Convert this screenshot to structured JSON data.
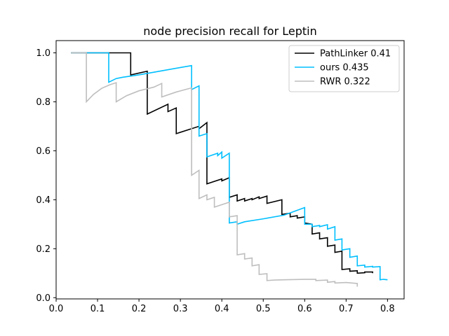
{
  "chart_data": {
    "type": "line",
    "title": "node precision recall for Leptin",
    "xlabel": "",
    "ylabel": "",
    "xlim": [
      0.0,
      0.84
    ],
    "ylim": [
      -0.005,
      1.05
    ],
    "xticks": [
      "0.0",
      "0.1",
      "0.2",
      "0.3",
      "0.4",
      "0.5",
      "0.6",
      "0.7",
      "0.8"
    ],
    "xtick_values": [
      0.0,
      0.1,
      0.2,
      0.3,
      0.4,
      0.5,
      0.6,
      0.7,
      0.8
    ],
    "yticks": [
      "0.0",
      "0.2",
      "0.4",
      "0.6",
      "0.8",
      "1.0"
    ],
    "ytick_values": [
      0.0,
      0.2,
      0.4,
      0.6,
      0.8,
      1.0
    ],
    "legend_position": "top-right",
    "grid": false,
    "series": [
      {
        "name": "PathLinker 0.41",
        "color": "#000000",
        "points": [
          [
            0.036,
            1.0
          ],
          [
            0.18,
            1.0
          ],
          [
            0.18,
            0.91
          ],
          [
            0.22,
            0.925
          ],
          [
            0.22,
            0.75
          ],
          [
            0.27,
            0.79
          ],
          [
            0.27,
            0.76
          ],
          [
            0.29,
            0.775
          ],
          [
            0.29,
            0.67
          ],
          [
            0.345,
            0.7
          ],
          [
            0.345,
            0.69
          ],
          [
            0.364,
            0.715
          ],
          [
            0.364,
            0.465
          ],
          [
            0.4,
            0.485
          ],
          [
            0.4,
            0.477
          ],
          [
            0.418,
            0.49
          ],
          [
            0.418,
            0.41
          ],
          [
            0.437,
            0.42
          ],
          [
            0.437,
            0.395
          ],
          [
            0.455,
            0.405
          ],
          [
            0.455,
            0.395
          ],
          [
            0.473,
            0.405
          ],
          [
            0.473,
            0.4
          ],
          [
            0.49,
            0.412
          ],
          [
            0.49,
            0.405
          ],
          [
            0.509,
            0.415
          ],
          [
            0.509,
            0.385
          ],
          [
            0.545,
            0.4
          ],
          [
            0.545,
            0.34
          ],
          [
            0.565,
            0.345
          ],
          [
            0.565,
            0.33
          ],
          [
            0.582,
            0.335
          ],
          [
            0.582,
            0.325
          ],
          [
            0.6,
            0.33
          ],
          [
            0.6,
            0.305
          ],
          [
            0.618,
            0.3
          ],
          [
            0.618,
            0.26
          ],
          [
            0.636,
            0.265
          ],
          [
            0.636,
            0.24
          ],
          [
            0.655,
            0.245
          ],
          [
            0.655,
            0.21
          ],
          [
            0.673,
            0.215
          ],
          [
            0.673,
            0.185
          ],
          [
            0.69,
            0.19
          ],
          [
            0.69,
            0.115
          ],
          [
            0.709,
            0.118
          ],
          [
            0.709,
            0.108
          ],
          [
            0.727,
            0.11
          ],
          [
            0.727,
            0.1
          ],
          [
            0.745,
            0.102
          ],
          [
            0.745,
            0.105
          ],
          [
            0.764,
            0.105
          ],
          [
            0.764,
            0.1
          ]
        ]
      },
      {
        "name": "ours 0.435",
        "color": "#00bfff",
        "points": [
          [
            0.036,
            1.0
          ],
          [
            0.127,
            1.0
          ],
          [
            0.127,
            0.88
          ],
          [
            0.145,
            0.895
          ],
          [
            0.16,
            0.9
          ],
          [
            0.2,
            0.91
          ],
          [
            0.25,
            0.925
          ],
          [
            0.3,
            0.94
          ],
          [
            0.327,
            0.948
          ],
          [
            0.327,
            0.85
          ],
          [
            0.345,
            0.865
          ],
          [
            0.345,
            0.66
          ],
          [
            0.364,
            0.67
          ],
          [
            0.364,
            0.575
          ],
          [
            0.39,
            0.59
          ],
          [
            0.39,
            0.58
          ],
          [
            0.4,
            0.595
          ],
          [
            0.4,
            0.57
          ],
          [
            0.418,
            0.59
          ],
          [
            0.418,
            0.305
          ],
          [
            0.437,
            0.31
          ],
          [
            0.437,
            0.3
          ],
          [
            0.455,
            0.31
          ],
          [
            0.5,
            0.322
          ],
          [
            0.55,
            0.337
          ],
          [
            0.6,
            0.368
          ],
          [
            0.6,
            0.3
          ],
          [
            0.618,
            0.3
          ],
          [
            0.618,
            0.29
          ],
          [
            0.636,
            0.295
          ],
          [
            0.636,
            0.29
          ],
          [
            0.655,
            0.298
          ],
          [
            0.655,
            0.28
          ],
          [
            0.673,
            0.29
          ],
          [
            0.673,
            0.235
          ],
          [
            0.69,
            0.24
          ],
          [
            0.69,
            0.195
          ],
          [
            0.709,
            0.2
          ],
          [
            0.709,
            0.165
          ],
          [
            0.727,
            0.17
          ],
          [
            0.727,
            0.13
          ],
          [
            0.745,
            0.133
          ],
          [
            0.745,
            0.125
          ],
          [
            0.764,
            0.128
          ],
          [
            0.764,
            0.125
          ],
          [
            0.782,
            0.127
          ],
          [
            0.782,
            0.073
          ],
          [
            0.79,
            0.075
          ],
          [
            0.8,
            0.073
          ]
        ]
      },
      {
        "name": "RWR 0.322",
        "color": "#bebebe",
        "points": [
          [
            0.036,
            1.0
          ],
          [
            0.073,
            1.0
          ],
          [
            0.073,
            0.8
          ],
          [
            0.09,
            0.83
          ],
          [
            0.11,
            0.855
          ],
          [
            0.13,
            0.87
          ],
          [
            0.145,
            0.878
          ],
          [
            0.145,
            0.8
          ],
          [
            0.17,
            0.825
          ],
          [
            0.2,
            0.845
          ],
          [
            0.236,
            0.86
          ],
          [
            0.255,
            0.875
          ],
          [
            0.255,
            0.82
          ],
          [
            0.29,
            0.84
          ],
          [
            0.327,
            0.857
          ],
          [
            0.327,
            0.5
          ],
          [
            0.345,
            0.52
          ],
          [
            0.345,
            0.405
          ],
          [
            0.364,
            0.42
          ],
          [
            0.364,
            0.4
          ],
          [
            0.382,
            0.41
          ],
          [
            0.382,
            0.37
          ],
          [
            0.4,
            0.38
          ],
          [
            0.4,
            0.38
          ],
          [
            0.418,
            0.39
          ],
          [
            0.418,
            0.33
          ],
          [
            0.437,
            0.335
          ],
          [
            0.437,
            0.175
          ],
          [
            0.455,
            0.18
          ],
          [
            0.455,
            0.158
          ],
          [
            0.473,
            0.162
          ],
          [
            0.473,
            0.13
          ],
          [
            0.49,
            0.135
          ],
          [
            0.49,
            0.095
          ],
          [
            0.509,
            0.098
          ],
          [
            0.509,
            0.07
          ],
          [
            0.527,
            0.072
          ],
          [
            0.55,
            0.073
          ],
          [
            0.6,
            0.075
          ],
          [
            0.627,
            0.075
          ],
          [
            0.627,
            0.07
          ],
          [
            0.655,
            0.072
          ],
          [
            0.655,
            0.063
          ],
          [
            0.673,
            0.066
          ],
          [
            0.673,
            0.06
          ],
          [
            0.7,
            0.062
          ],
          [
            0.727,
            0.058
          ],
          [
            0.727,
            0.045
          ]
        ]
      }
    ]
  }
}
